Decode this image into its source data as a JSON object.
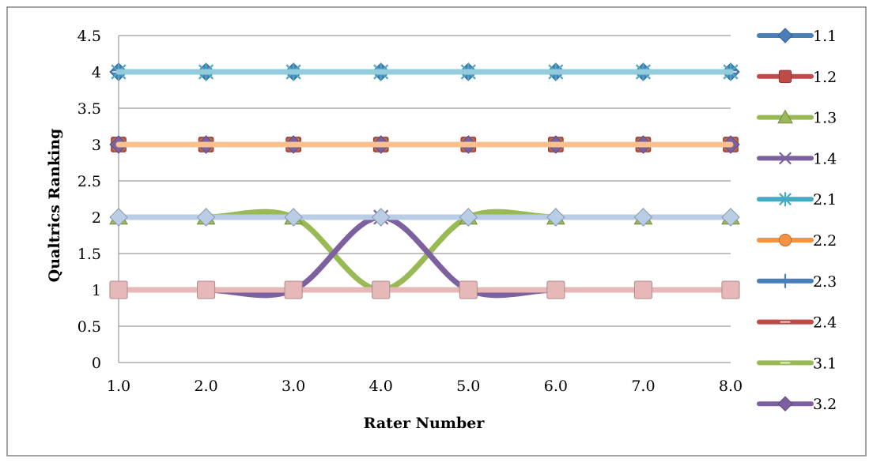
{
  "chart_data": {
    "type": "line",
    "title": "",
    "xlabel": "Rater Number",
    "ylabel": "Qualtrics Ranking",
    "x": [
      1,
      2,
      3,
      4,
      5,
      6,
      7,
      8
    ],
    "x_tick_labels": [
      "1.0",
      "2.0",
      "3.0",
      "4.0",
      "5.0",
      "6.0",
      "7.0",
      "8.0"
    ],
    "y_tick_labels": [
      "0",
      "0.5",
      "1",
      "1.5",
      "2",
      "2.5",
      "3",
      "3.5",
      "4",
      "4.5"
    ],
    "ylim": [
      0,
      4.5
    ],
    "grid": "horizontal",
    "legend_position": "right",
    "smoothed": true,
    "series": [
      {
        "name": "1.1",
        "values": [
          4,
          4,
          4,
          4,
          4,
          4,
          4,
          4
        ],
        "color": "#4A7EBB",
        "marker": "diamond"
      },
      {
        "name": "1.2",
        "values": [
          3,
          3,
          3,
          3,
          3,
          3,
          3,
          3
        ],
        "color": "#BE4B48",
        "marker": "square"
      },
      {
        "name": "1.3",
        "values": [
          2,
          2,
          2,
          1,
          2,
          2,
          2,
          2
        ],
        "color": "#98B954",
        "marker": "triangle"
      },
      {
        "name": "1.4",
        "values": [
          1,
          1,
          1,
          2,
          1,
          1,
          1,
          1
        ],
        "color": "#7D60A0",
        "marker": "x"
      },
      {
        "name": "2.1",
        "values": [
          4,
          4,
          4,
          4,
          4,
          4,
          4,
          4
        ],
        "color": "#46AAC5",
        "marker": "star"
      },
      {
        "name": "2.2",
        "values": [
          3,
          3,
          3,
          3,
          3,
          3,
          3,
          3
        ],
        "color": "#F69240",
        "marker": "circle"
      },
      {
        "name": "2.3",
        "values": [
          2,
          2,
          2,
          2,
          2,
          2,
          2,
          2
        ],
        "color": "#4A7EBB",
        "marker": "plus"
      },
      {
        "name": "2.4",
        "values": [
          1,
          1,
          1,
          1,
          1,
          1,
          1,
          1
        ],
        "color": "#BE4B48",
        "marker": "dash"
      },
      {
        "name": "3.1",
        "values": [
          4,
          4,
          4,
          4,
          4,
          4,
          4,
          4
        ],
        "color": "#98B954",
        "marker": "dash"
      },
      {
        "name": "3.2",
        "values": [
          3,
          3,
          3,
          3,
          3,
          3,
          3,
          3
        ],
        "color": "#7D60A0",
        "marker": "diamond"
      }
    ],
    "extra_visible_series": [
      {
        "values": [
          4,
          4,
          4,
          4,
          4,
          4,
          4,
          4
        ],
        "color": "#93CDDD",
        "marker": "none"
      },
      {
        "values": [
          3,
          3,
          3,
          3,
          3,
          3,
          3,
          3
        ],
        "color": "#FAC090",
        "marker": "none"
      },
      {
        "values": [
          2,
          2,
          2,
          2,
          2,
          2,
          2,
          2
        ],
        "color": "#B9CDE5",
        "marker": "diamond"
      },
      {
        "values": [
          1,
          1,
          1,
          1,
          1,
          1,
          1,
          1
        ],
        "color": "#E6B9B8",
        "marker": "square"
      }
    ]
  }
}
